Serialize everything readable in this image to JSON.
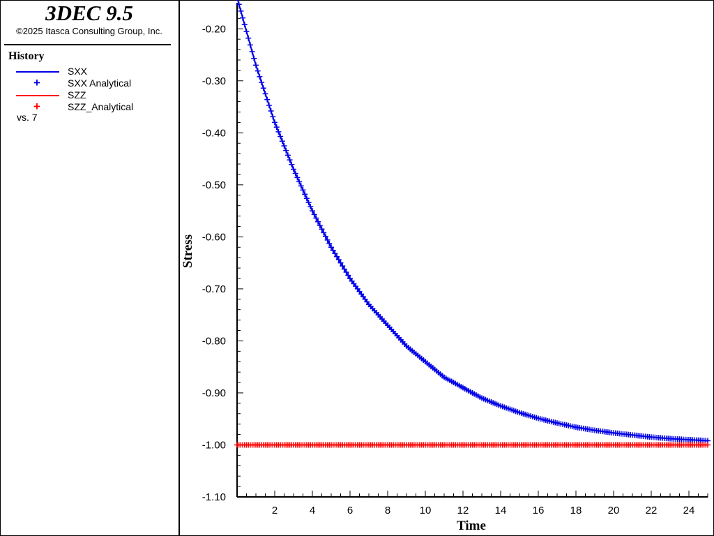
{
  "app": {
    "title": "3DEC 9.5",
    "copyright": "©2025 Itasca Consulting Group, Inc."
  },
  "legend": {
    "heading": "History",
    "items": [
      {
        "label": "SXX",
        "marker": "line",
        "color": "#0000e6"
      },
      {
        "label": "SXX Analytical",
        "marker": "plus",
        "color": "#0000e6"
      },
      {
        "label": "SZZ",
        "marker": "line",
        "color": "#ff0000"
      },
      {
        "label": "SZZ_Analytical",
        "marker": "plus",
        "color": "#ff0000"
      }
    ],
    "vs_label": "vs. 7"
  },
  "chart_data": {
    "type": "line",
    "xlabel": "Time",
    "ylabel": "Stress",
    "xlim": [
      0,
      25
    ],
    "ylim": [
      -1.1,
      -0.15
    ],
    "x_ticks": [
      2,
      4,
      6,
      8,
      10,
      12,
      14,
      16,
      18,
      20,
      22,
      24
    ],
    "x_tick_labels": [
      "2",
      "4",
      "6",
      "8",
      "10",
      "12",
      "14",
      "16",
      "18",
      "20",
      "22",
      "24"
    ],
    "y_ticks": [
      -0.2,
      -0.3,
      -0.4,
      -0.5,
      -0.6,
      -0.7,
      -0.8,
      -0.9,
      -1.0,
      -1.1
    ],
    "y_tick_labels": [
      "-0.20",
      "-0.30",
      "-0.40",
      "-0.50",
      "-0.60",
      "-0.70",
      "-0.80",
      "-0.90",
      "-1.00",
      "-1.10"
    ],
    "series": [
      {
        "name": "SXX",
        "style": "line",
        "color": "#0000e6",
        "x": [
          0,
          1,
          2,
          3,
          4,
          5,
          6,
          7,
          8,
          9,
          10,
          11,
          12,
          13,
          14,
          15,
          16,
          17,
          18,
          19,
          20,
          21,
          22,
          23,
          24,
          25
        ],
        "y": [
          -0.14,
          -0.27,
          -0.38,
          -0.47,
          -0.55,
          -0.62,
          -0.68,
          -0.73,
          -0.77,
          -0.81,
          -0.84,
          -0.87,
          -0.89,
          -0.91,
          -0.925,
          -0.938,
          -0.949,
          -0.958,
          -0.966,
          -0.972,
          -0.977,
          -0.981,
          -0.985,
          -0.988,
          -0.99,
          -0.992
        ]
      },
      {
        "name": "SXX Analytical",
        "style": "plus",
        "color": "#0000e6",
        "x": [
          0,
          1,
          2,
          3,
          4,
          5,
          6,
          7,
          8,
          9,
          10,
          11,
          12,
          13,
          14,
          15,
          16,
          17,
          18,
          19,
          20,
          21,
          22,
          23,
          24,
          25
        ],
        "y": [
          -0.14,
          -0.27,
          -0.38,
          -0.47,
          -0.55,
          -0.62,
          -0.68,
          -0.73,
          -0.77,
          -0.81,
          -0.84,
          -0.87,
          -0.89,
          -0.91,
          -0.925,
          -0.938,
          -0.949,
          -0.958,
          -0.966,
          -0.972,
          -0.977,
          -0.981,
          -0.985,
          -0.988,
          -0.99,
          -0.992
        ]
      },
      {
        "name": "SZZ",
        "style": "line",
        "color": "#ff0000",
        "x": [
          0,
          25
        ],
        "y": [
          -1.0,
          -1.0
        ]
      },
      {
        "name": "SZZ_Analytical",
        "style": "plus",
        "color": "#ff0000",
        "x": [
          0,
          25
        ],
        "y": [
          -1.0,
          -1.0
        ]
      }
    ]
  }
}
